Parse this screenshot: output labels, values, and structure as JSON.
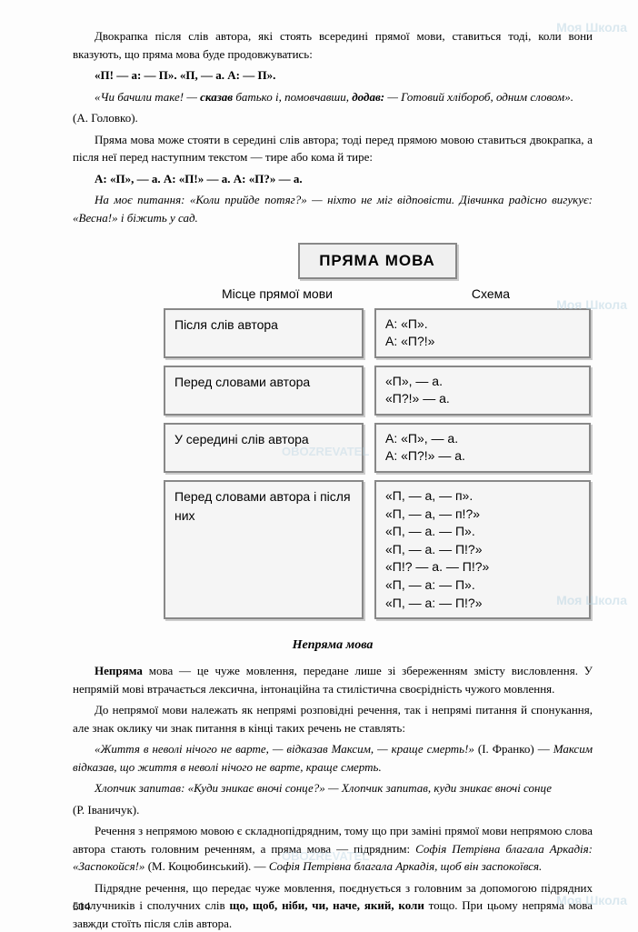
{
  "watermark": "Моя Школа",
  "obozrevatel": "OBOZREVATEL",
  "intro": {
    "p1": "Двокрапка після слів автора, які стоять всередині прямої мови, ставиться тоді, коли вони вказують, що пряма мова буде продовжуватись:",
    "p2": "«П! — а: — П». «П, — а. А: — П».",
    "p3_italic": "«Чи бачили таке! — ",
    "p3_bold": "сказав",
    "p3_mid": " батько і, помовчавши, ",
    "p3_bold2": "додав:",
    "p3_end": " — Готовий хлібороб, одним словом».",
    "p3_author": "(А. Головко).",
    "p4": "Пряма мова може стояти в середині слів автора; тоді перед прямою мовою ставиться двокрапка, а після неї перед наступним текстом — тире або кома й тире:",
    "p5": "А: «П», — а.  А: «П!» — а. А: «П?» — а.",
    "p6": "На моє питання: «Коли прийде потяг?» — ніхто не міг відповісти. Дівчинка радісно вигукує: «Весна!» і біжить у сад."
  },
  "diagram": {
    "title": "ПРЯМА МОВА",
    "header_left": "Місце прямої мови",
    "header_right": "Схема",
    "rows": [
      {
        "left": "Після слів автора",
        "right": "А: «П».\nА: «П?!»"
      },
      {
        "left": "Перед словами автора",
        "right": "«П», — а.\n«П?!» — а."
      },
      {
        "left": "У середині слів автора",
        "right": "А: «П», — а.\nА: «П?!» — а."
      },
      {
        "left": "Перед словами автора і після них",
        "right": "«П, — а, — п».\n«П, — а, — п!?»\n«П, — а. — П».\n«П, — а. — П!?»\n«П!? — а. — П!?»\n«П, — а: — П».\n«П, — а: — П!?»"
      }
    ]
  },
  "section2": {
    "title": "Непряма мова",
    "p1_bold": "Непряма",
    "p1": " мова — це чуже мовлення, передане лише зі збереженням змісту висловлення. У непрямій мові втрачається лексична, інтонаційна та стилістична своєрідність чужого мовлення.",
    "p2": "До непрямої мови належать як непрямі розповідні речення, так і непрямі питання й спонукання, але знак оклику чи знак питання в кінці таких речень не ставлять:",
    "p3_q": "«Життя в неволі нічого не варте, — відказав Максим, — краще смерть!»",
    "p3_auth": " (І. Франко) — ",
    "p3_ind": "Максим відказав, що життя в неволі нічого не варте, краще смерть.",
    "p4_q": "Хлопчик запитав: «Куди зникає вночі сонце?» — Хлопчик запитав, куди зникає вночі сонце",
    "p4_auth": "(Р. Іваничук).",
    "p5": "Речення з непрямою мовою є складнопідрядним, тому що при заміні прямої мови непрямою слова автора стають головним реченням, а пряма мова — підрядним: ",
    "p5_ex": "Софія Петрівна благала Аркадія: «Заспокойся!»",
    "p5_auth": " (М. Коцюбинський). — ",
    "p5_ind": "Софія Петрівна благала Аркадія, щоб він заспокоївся.",
    "p6": "Підрядне речення, що передає чуже мовлення, поєднується з головним за допомогою підрядних сполучників і сполучних слів ",
    "p6_bold": "що, щоб, ніби, чи, наче, який, коли",
    "p6_end": " тощо. При цьому непряма мова завжди стоїть після слів автора."
  },
  "page_number": "514"
}
